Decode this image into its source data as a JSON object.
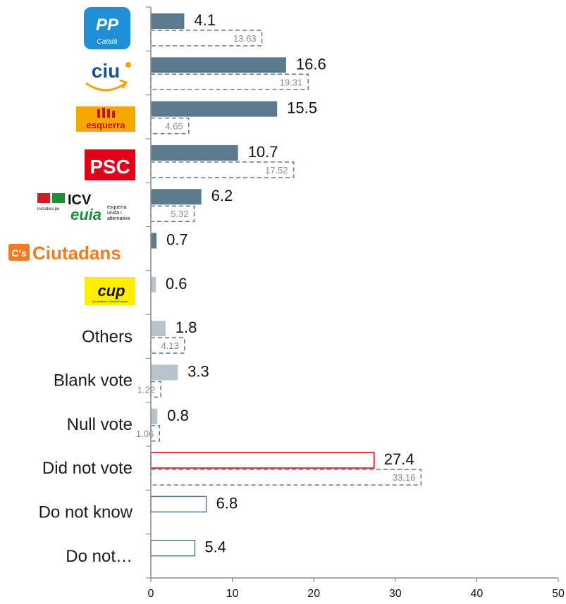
{
  "chart_data": {
    "type": "bar",
    "orientation": "horizontal",
    "categories": [
      "PP",
      "CiU",
      "Esquerra",
      "PSC",
      "ICV-EUiA",
      "Ciutadans",
      "CUP",
      "Others",
      "Blank vote",
      "Null vote",
      "Did not vote",
      "Do not know",
      "Do not…"
    ],
    "series": [
      {
        "values": [
          4.1,
          16.6,
          15.5,
          10.7,
          6.2,
          0.7,
          0.6,
          1.8,
          3.3,
          0.8,
          27.4,
          6.8,
          5.4
        ]
      },
      {
        "values": [
          13.63,
          19.31,
          4.65,
          17.52,
          5.32,
          null,
          null,
          4.13,
          1.22,
          1.06,
          33.16,
          null,
          null
        ]
      }
    ],
    "value_labels": [
      "4.1",
      "16.6",
      "15.5",
      "10.7",
      "6.2",
      "0.7",
      "0.6",
      "1.8",
      "3.3",
      "0.8",
      "27.4",
      "6.8",
      "5.4"
    ],
    "reference_labels": [
      "13.63",
      "19.31",
      "4.65",
      "17.52",
      "5.32",
      "",
      "",
      "4.13",
      "1.22",
      "1.06",
      "33.16",
      "",
      ""
    ],
    "xlim": [
      0,
      50
    ],
    "xticks": [
      0,
      10,
      20,
      30,
      40,
      50
    ],
    "grid": false,
    "legend": "none"
  },
  "logos": {
    "pp": {
      "main": "PP",
      "sub": "Català"
    },
    "ciu": {
      "main": "ciu"
    },
    "esquerra": {
      "main": "esquerra"
    },
    "psc": {
      "main": "PSC"
    },
    "icv": {
      "main": "ICV",
      "euia": "euia",
      "small1": "iniciativa pe",
      "small2": "esquerra",
      "small3": "unida i",
      "small4": "alternativa"
    },
    "cs": {
      "badge": "C's",
      "main": "Ciutadans"
    },
    "cup": {
      "main": "cup",
      "sub": "Candidatura d'Unitat Popular"
    }
  },
  "colors": {
    "party_bar": "#5b7a8e",
    "light_bar": "#b4c3cc",
    "did_not_vote_stroke": "#c00000",
    "did_not_vote_label": "#c00000",
    "outline_bar": "#5b7a8e",
    "reference_dash": "#5b7a8e",
    "axis": "#8c8c8c"
  }
}
